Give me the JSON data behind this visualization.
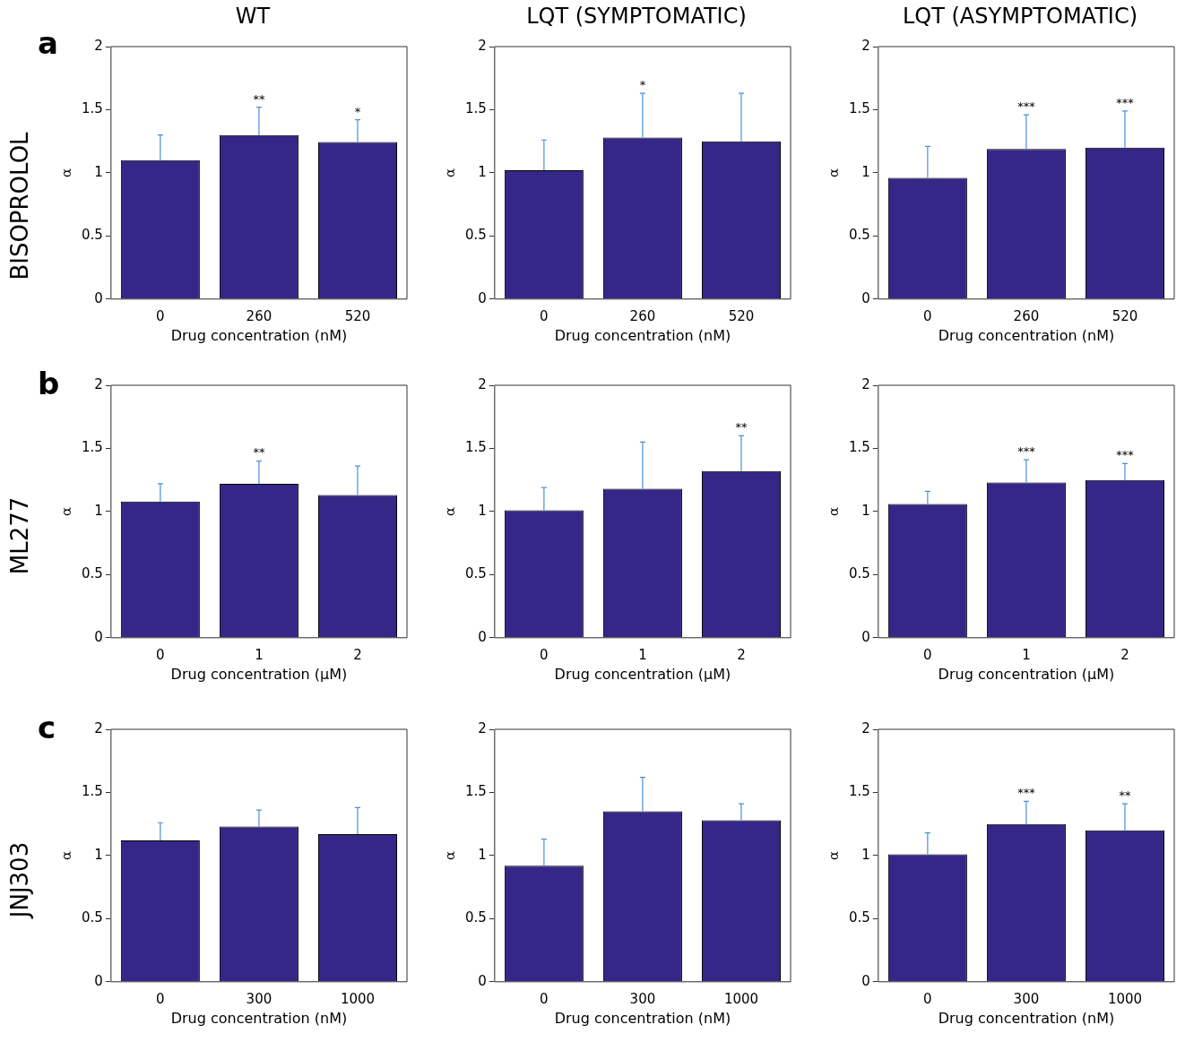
{
  "chart_data": [
    {
      "type": "bar",
      "title": "WT",
      "ylabel": "α",
      "xlabel": "Drug concentration (nM)",
      "categories": [
        "0",
        "260",
        "520"
      ],
      "values": [
        1.1,
        1.3,
        1.245
      ],
      "errors": [
        [
          1.1,
          1.3
        ],
        [
          1.3,
          1.52
        ],
        [
          1.245,
          1.42
        ]
      ],
      "color": "#352787",
      "ylim": [
        0,
        2
      ],
      "yticks": [
        0,
        0.5,
        1,
        1.5,
        2
      ],
      "grid": false,
      "legend": false,
      "annotations": [
        "a",
        "BISOPROLOL",
        {
          "text": "**",
          "x": "260",
          "y": 1.52
        },
        {
          "text": "*",
          "x": "520",
          "y": 1.42
        }
      ]
    },
    {
      "type": "bar",
      "title": "LQT (SYMPTOMATIC)",
      "ylabel": "α",
      "xlabel": "Drug concentration (nM)",
      "categories": [
        "0",
        "260",
        "520"
      ],
      "values": [
        1.02,
        1.28,
        1.25
      ],
      "errors": [
        [
          1.02,
          1.26
        ],
        [
          1.28,
          1.63
        ],
        [
          1.25,
          1.63
        ]
      ],
      "color": "#352787",
      "ylim": [
        0,
        2
      ],
      "yticks": [
        0,
        0.5,
        1,
        1.5,
        2
      ],
      "grid": false,
      "legend": false,
      "annotations": [
        {
          "text": "*",
          "x": "260",
          "y": 1.63
        }
      ]
    },
    {
      "type": "bar",
      "title": "LQT (ASYMPTOMATIC)",
      "ylabel": "α",
      "xlabel": "Drug concentration (nM)",
      "categories": [
        "0",
        "260",
        "520"
      ],
      "values": [
        0.96,
        1.19,
        1.2
      ],
      "errors": [
        [
          0.96,
          1.21
        ],
        [
          1.19,
          1.46
        ],
        [
          1.2,
          1.49
        ]
      ],
      "color": "#352787",
      "ylim": [
        0,
        2
      ],
      "yticks": [
        0,
        0.5,
        1,
        1.5,
        2
      ],
      "grid": false,
      "legend": false,
      "annotations": [
        {
          "text": "***",
          "x": "260",
          "y": 1.46
        },
        {
          "text": "***",
          "x": "520",
          "y": 1.49
        }
      ]
    },
    {
      "type": "bar",
      "ylabel": "α",
      "xlabel": "Drug concentration (μM)",
      "categories": [
        "0",
        "1",
        "2"
      ],
      "values": [
        1.08,
        1.22,
        1.13
      ],
      "errors": [
        [
          1.08,
          1.22
        ],
        [
          1.22,
          1.4
        ],
        [
          1.13,
          1.36
        ]
      ],
      "color": "#352787",
      "ylim": [
        0,
        2
      ],
      "yticks": [
        0,
        0.5,
        1,
        1.5,
        2
      ],
      "grid": false,
      "legend": false,
      "annotations": [
        "b",
        "ML277",
        {
          "text": "**",
          "x": "1",
          "y": 1.4
        }
      ]
    },
    {
      "type": "bar",
      "ylabel": "α",
      "xlabel": "Drug concentration (μM)",
      "categories": [
        "0",
        "1",
        "2"
      ],
      "values": [
        1.01,
        1.18,
        1.32
      ],
      "errors": [
        [
          1.01,
          1.19
        ],
        [
          1.18,
          1.55
        ],
        [
          1.32,
          1.6
        ]
      ],
      "color": "#352787",
      "ylim": [
        0,
        2
      ],
      "yticks": [
        0,
        0.5,
        1,
        1.5,
        2
      ],
      "grid": false,
      "legend": false,
      "annotations": [
        {
          "text": "**",
          "x": "2",
          "y": 1.6
        }
      ]
    },
    {
      "type": "bar",
      "ylabel": "α",
      "xlabel": "Drug concentration (μM)",
      "categories": [
        "0",
        "1",
        "2"
      ],
      "values": [
        1.06,
        1.23,
        1.25
      ],
      "errors": [
        [
          1.06,
          1.16
        ],
        [
          1.23,
          1.41
        ],
        [
          1.25,
          1.38
        ]
      ],
      "color": "#352787",
      "ylim": [
        0,
        2
      ],
      "yticks": [
        0,
        0.5,
        1,
        1.5,
        2
      ],
      "grid": false,
      "legend": false,
      "annotations": [
        {
          "text": "***",
          "x": "1",
          "y": 1.41
        },
        {
          "text": "***",
          "x": "2",
          "y": 1.38
        }
      ]
    },
    {
      "type": "bar",
      "ylabel": "α",
      "xlabel": "Drug concentration (nM)",
      "categories": [
        "0",
        "300",
        "1000"
      ],
      "values": [
        1.12,
        1.23,
        1.17
      ],
      "errors": [
        [
          1.12,
          1.26
        ],
        [
          1.23,
          1.36
        ],
        [
          1.17,
          1.38
        ]
      ],
      "color": "#352787",
      "ylim": [
        0,
        2
      ],
      "yticks": [
        0,
        0.5,
        1,
        1.5,
        2
      ],
      "grid": false,
      "legend": false,
      "annotations": [
        "c",
        "JNJ303"
      ]
    },
    {
      "type": "bar",
      "ylabel": "α",
      "xlabel": "Drug concentration (nM)",
      "categories": [
        "0",
        "300",
        "1000"
      ],
      "values": [
        0.92,
        1.35,
        1.28
      ],
      "errors": [
        [
          0.92,
          1.13
        ],
        [
          1.35,
          1.62
        ],
        [
          1.28,
          1.41
        ]
      ],
      "color": "#352787",
      "ylim": [
        0,
        2
      ],
      "yticks": [
        0,
        0.5,
        1,
        1.5,
        2
      ],
      "grid": false,
      "legend": false
    },
    {
      "type": "bar",
      "ylabel": "α",
      "xlabel": "Drug concentration (nM)",
      "categories": [
        "0",
        "300",
        "1000"
      ],
      "values": [
        1.01,
        1.25,
        1.2
      ],
      "errors": [
        [
          1.01,
          1.18
        ],
        [
          1.25,
          1.43
        ],
        [
          1.2,
          1.41
        ]
      ],
      "color": "#352787",
      "ylim": [
        0,
        2
      ],
      "yticks": [
        0,
        0.5,
        1,
        1.5,
        2
      ],
      "grid": false,
      "legend": false,
      "annotations": [
        {
          "text": "***",
          "x": "300",
          "y": 1.43
        },
        {
          "text": "**",
          "x": "1000",
          "y": 1.41
        }
      ]
    }
  ]
}
